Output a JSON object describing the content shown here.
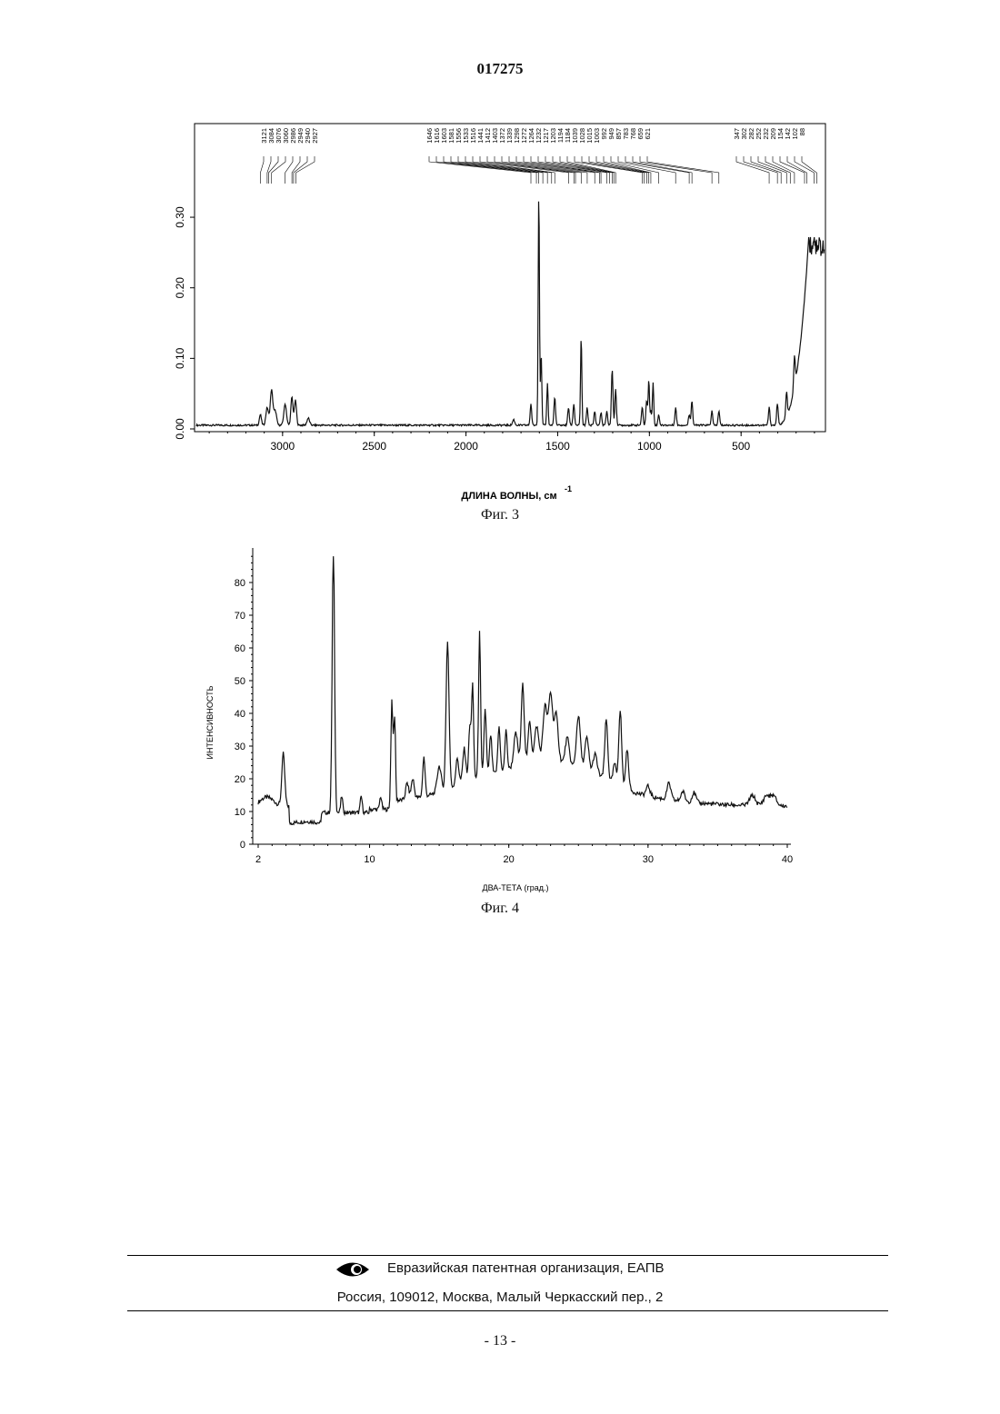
{
  "document": {
    "number": "017275",
    "page_number": "- 13 -"
  },
  "figure3": {
    "caption": "Фиг. 3",
    "xlabel": "ДЛИНА ВОЛНЫ, см",
    "xlabel_sup": "-1"
  },
  "figure4": {
    "caption": "Фиг. 4",
    "xlabel": "ДВА-ТЕТА (град.)",
    "ylabel": "ИНТЕНСИВНОСТЬ"
  },
  "footer": {
    "organization": "Евразийская патентная организация, ЕАПВ",
    "address": "Россия, 109012, Москва, Малый Черкасский пер., 2",
    "logo_icon": "eapo-eye-logo-icon"
  },
  "chart_data": [
    {
      "type": "line",
      "id": "fig3",
      "x_reversed": true,
      "xlim": [
        3480,
        40
      ],
      "ylim": [
        0,
        0.34
      ],
      "xticks": [
        "3000",
        "2500",
        "2000",
        "1500",
        "1000",
        "500"
      ],
      "xtick_values": [
        3000,
        2500,
        2000,
        1500,
        1000,
        500
      ],
      "yticks": [
        "0.00",
        "0.10",
        "0.20",
        "0.30"
      ],
      "ytick_values": [
        0,
        0.1,
        0.2,
        0.3
      ],
      "peak_labels": [
        "3121",
        "3084",
        "3076",
        "3060",
        "2986",
        "2949",
        "2940",
        "2927",
        "1646",
        "1616",
        "1603",
        "1581",
        "1556",
        "1533",
        "1516",
        "1441",
        "1412",
        "1403",
        "1372",
        "1339",
        "1298",
        "1272",
        "1264",
        "1232",
        "1217",
        "1203",
        "1194",
        "1184",
        "1039",
        "1028",
        "1015",
        "1003",
        "992",
        "949",
        "857",
        "783",
        "768",
        "659",
        "621",
        "347",
        "302",
        "282",
        "252",
        "232",
        "209",
        "154",
        "142",
        "102",
        "88"
      ],
      "peak_positions": [
        3121,
        3084,
        3076,
        3060,
        2986,
        2949,
        2940,
        2927,
        1646,
        1616,
        1603,
        1581,
        1556,
        1533,
        1516,
        1441,
        1412,
        1403,
        1372,
        1339,
        1298,
        1272,
        1264,
        1232,
        1217,
        1203,
        1194,
        1184,
        1039,
        1028,
        1015,
        1003,
        992,
        949,
        857,
        783,
        768,
        659,
        621,
        347,
        302,
        282,
        252,
        232,
        209,
        154,
        142,
        102,
        88
      ],
      "peaks": [
        {
          "x": 3121,
          "y": 0.015,
          "w": 8
        },
        {
          "x": 3084,
          "y": 0.025,
          "w": 10
        },
        {
          "x": 3060,
          "y": 0.05,
          "w": 10
        },
        {
          "x": 3040,
          "y": 0.02,
          "w": 10
        },
        {
          "x": 2986,
          "y": 0.03,
          "w": 10
        },
        {
          "x": 2949,
          "y": 0.04,
          "w": 8
        },
        {
          "x": 2930,
          "y": 0.035,
          "w": 8
        },
        {
          "x": 2860,
          "y": 0.01,
          "w": 10
        },
        {
          "x": 1740,
          "y": 0.008,
          "w": 8
        },
        {
          "x": 1646,
          "y": 0.03,
          "w": 6
        },
        {
          "x": 1603,
          "y": 0.33,
          "w": 5
        },
        {
          "x": 1590,
          "y": 0.1,
          "w": 5
        },
        {
          "x": 1556,
          "y": 0.06,
          "w": 5
        },
        {
          "x": 1516,
          "y": 0.04,
          "w": 6
        },
        {
          "x": 1441,
          "y": 0.025,
          "w": 6
        },
        {
          "x": 1412,
          "y": 0.03,
          "w": 6
        },
        {
          "x": 1372,
          "y": 0.125,
          "w": 5
        },
        {
          "x": 1339,
          "y": 0.025,
          "w": 6
        },
        {
          "x": 1298,
          "y": 0.02,
          "w": 6
        },
        {
          "x": 1264,
          "y": 0.018,
          "w": 6
        },
        {
          "x": 1232,
          "y": 0.02,
          "w": 6
        },
        {
          "x": 1203,
          "y": 0.08,
          "w": 6
        },
        {
          "x": 1184,
          "y": 0.05,
          "w": 6
        },
        {
          "x": 1039,
          "y": 0.025,
          "w": 6
        },
        {
          "x": 1015,
          "y": 0.035,
          "w": 6
        },
        {
          "x": 1003,
          "y": 0.065,
          "w": 5
        },
        {
          "x": 992,
          "y": 0.02,
          "w": 5
        },
        {
          "x": 980,
          "y": 0.06,
          "w": 5
        },
        {
          "x": 949,
          "y": 0.015,
          "w": 6
        },
        {
          "x": 857,
          "y": 0.025,
          "w": 6
        },
        {
          "x": 783,
          "y": 0.015,
          "w": 6
        },
        {
          "x": 768,
          "y": 0.035,
          "w": 6
        },
        {
          "x": 659,
          "y": 0.02,
          "w": 6
        },
        {
          "x": 621,
          "y": 0.02,
          "w": 6
        },
        {
          "x": 347,
          "y": 0.025,
          "w": 6
        },
        {
          "x": 302,
          "y": 0.03,
          "w": 6
        },
        {
          "x": 252,
          "y": 0.035,
          "w": 6
        },
        {
          "x": 209,
          "y": 0.045,
          "w": 6
        }
      ],
      "rise": {
        "start": 320,
        "peak_x": 130,
        "peak_y": 0.27,
        "end_y": 0.24
      }
    },
    {
      "type": "line",
      "id": "fig4",
      "xlim": [
        2,
        40
      ],
      "ylim": [
        0,
        90
      ],
      "xticks": [
        "2",
        "10",
        "20",
        "30",
        "40"
      ],
      "xtick_values": [
        2,
        10,
        20,
        30,
        40
      ],
      "yticks": [
        "0",
        "10",
        "20",
        "30",
        "40",
        "50",
        "60",
        "70",
        "80"
      ],
      "ytick_values": [
        0,
        10,
        20,
        30,
        40,
        50,
        60,
        70,
        80
      ],
      "peaks": [
        {
          "x": 3.8,
          "y": 16,
          "w": 0.15
        },
        {
          "x": 7.4,
          "y": 82,
          "w": 0.12
        },
        {
          "x": 8.0,
          "y": 5,
          "w": 0.1
        },
        {
          "x": 9.4,
          "y": 5,
          "w": 0.1
        },
        {
          "x": 10.8,
          "y": 4,
          "w": 0.1
        },
        {
          "x": 11.6,
          "y": 33,
          "w": 0.1
        },
        {
          "x": 11.8,
          "y": 28,
          "w": 0.1
        },
        {
          "x": 12.7,
          "y": 5,
          "w": 0.15
        },
        {
          "x": 13.1,
          "y": 6,
          "w": 0.15
        },
        {
          "x": 13.9,
          "y": 12,
          "w": 0.12
        },
        {
          "x": 15.0,
          "y": 8,
          "w": 0.2
        },
        {
          "x": 15.6,
          "y": 45,
          "w": 0.15
        },
        {
          "x": 16.3,
          "y": 8,
          "w": 0.15
        },
        {
          "x": 16.8,
          "y": 10,
          "w": 0.15
        },
        {
          "x": 17.2,
          "y": 16,
          "w": 0.12
        },
        {
          "x": 17.4,
          "y": 28,
          "w": 0.1
        },
        {
          "x": 17.9,
          "y": 44,
          "w": 0.1
        },
        {
          "x": 18.3,
          "y": 20,
          "w": 0.12
        },
        {
          "x": 18.7,
          "y": 12,
          "w": 0.12
        },
        {
          "x": 19.3,
          "y": 14,
          "w": 0.12
        },
        {
          "x": 19.8,
          "y": 12,
          "w": 0.12
        },
        {
          "x": 20.5,
          "y": 10,
          "w": 0.2
        },
        {
          "x": 21.0,
          "y": 24,
          "w": 0.15
        },
        {
          "x": 21.5,
          "y": 12,
          "w": 0.15
        },
        {
          "x": 22.0,
          "y": 10,
          "w": 0.2
        },
        {
          "x": 22.6,
          "y": 16,
          "w": 0.2
        },
        {
          "x": 23.0,
          "y": 20,
          "w": 0.2
        },
        {
          "x": 23.4,
          "y": 14,
          "w": 0.2
        },
        {
          "x": 24.2,
          "y": 8,
          "w": 0.2
        },
        {
          "x": 25.0,
          "y": 16,
          "w": 0.2
        },
        {
          "x": 25.6,
          "y": 10,
          "w": 0.2
        },
        {
          "x": 26.2,
          "y": 6,
          "w": 0.2
        },
        {
          "x": 27.0,
          "y": 18,
          "w": 0.15
        },
        {
          "x": 27.6,
          "y": 6,
          "w": 0.15
        },
        {
          "x": 28.0,
          "y": 23,
          "w": 0.15
        },
        {
          "x": 28.5,
          "y": 12,
          "w": 0.15
        },
        {
          "x": 30.0,
          "y": 3,
          "w": 0.2
        },
        {
          "x": 31.5,
          "y": 5,
          "w": 0.2
        },
        {
          "x": 32.5,
          "y": 3,
          "w": 0.2
        },
        {
          "x": 33.3,
          "y": 3,
          "w": 0.2
        },
        {
          "x": 37.5,
          "y": 3,
          "w": 0.3
        },
        {
          "x": 38.5,
          "y": 3,
          "w": 0.3
        },
        {
          "x": 39.0,
          "y": 3,
          "w": 0.3
        }
      ],
      "broad": [
        {
          "x": 22.5,
          "y": 22,
          "w": 3.0
        },
        {
          "x": 26.5,
          "y": 8,
          "w": 2.0
        },
        {
          "x": 17.5,
          "y": 8,
          "w": 2.0
        }
      ]
    }
  ]
}
